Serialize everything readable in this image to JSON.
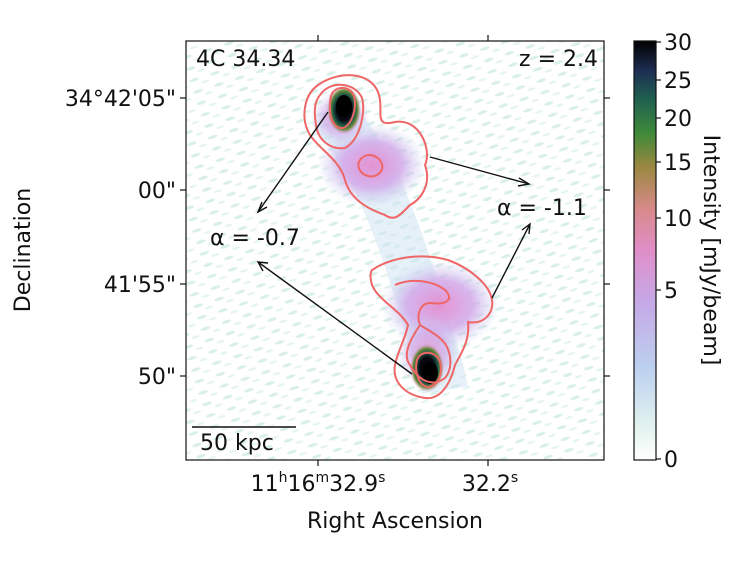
{
  "figure": {
    "source_name": "4C 34.34",
    "redshift_label": "z = 2.4",
    "xlabel": "Right Ascension",
    "ylabel": "Declination",
    "x_ticks": [
      {
        "h": "11",
        "hs": "h",
        "m": "16",
        "ms": "m",
        "s": "32.9",
        "ss": "s"
      },
      {
        "s": "32.2",
        "ss": "s"
      }
    ],
    "y_ticks": [
      "34°42'05\"",
      "00\"",
      "41'55\"",
      "50\""
    ],
    "scalebar_label": "50 kpc",
    "spectral_index": {
      "left": "α = -0.7",
      "right": "α = -1.1"
    },
    "colorbar": {
      "label": "Intensity [mJy/beam]",
      "ticks": [
        "30",
        "25",
        "20",
        "15",
        "10",
        "5",
        "0"
      ],
      "colormap": "cubehelix-like",
      "vmin": 0,
      "vmax": 30
    },
    "colors": {
      "contour": "#ee6666",
      "arrow": "#111111",
      "frame": "#111111"
    }
  }
}
